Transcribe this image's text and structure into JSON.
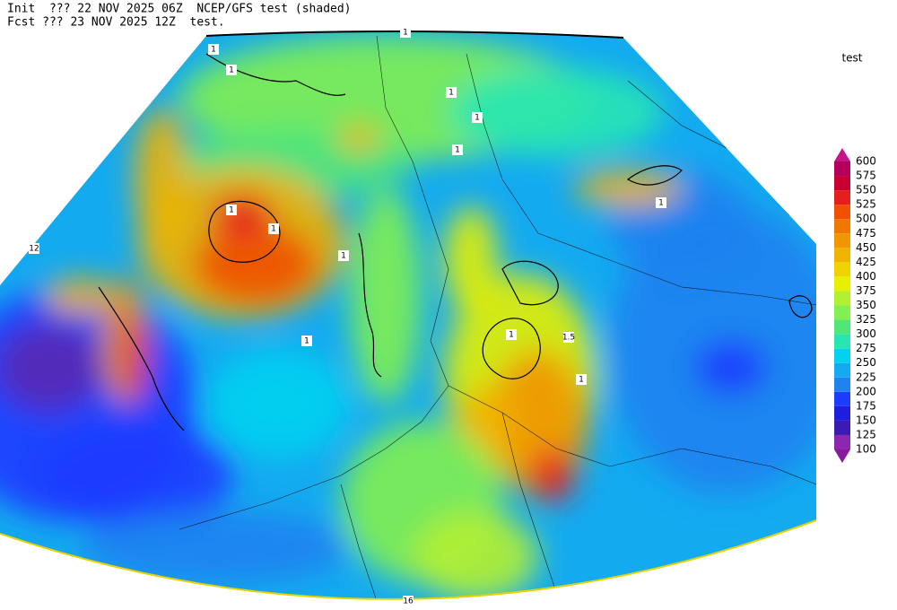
{
  "header": {
    "init_line": "Init  ??? 22 NOV 2025 06Z  NCEP/GFS test (shaded)",
    "fcst_line": "Fcst ??? 23 NOV 2025 12Z  test."
  },
  "colorbar": {
    "title": "test",
    "levels": [
      100,
      125,
      150,
      175,
      200,
      225,
      250,
      275,
      300,
      325,
      350,
      375,
      400,
      425,
      450,
      475,
      500,
      525,
      550,
      575,
      600
    ],
    "colors": [
      "#8a1a9c",
      "#8c27b0",
      "#3c1ab4",
      "#1e1edc",
      "#1e3cff",
      "#1e82f0",
      "#14aaf0",
      "#00d2f0",
      "#28e6b4",
      "#50e678",
      "#82f050",
      "#b4f032",
      "#e6f000",
      "#f0d200",
      "#f0b400",
      "#f09600",
      "#f07800",
      "#f05000",
      "#e61e1e",
      "#c80032",
      "#b4005a",
      "#c8148c"
    ]
  },
  "contour_labels": [
    "1",
    "1",
    "1",
    "1",
    "1",
    "1",
    "1",
    "1",
    "1",
    "1",
    "1",
    "1",
    "1",
    "1.5",
    "12",
    "16"
  ]
}
